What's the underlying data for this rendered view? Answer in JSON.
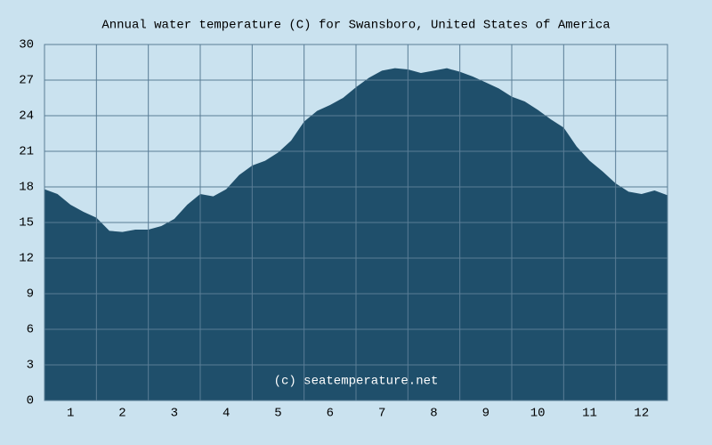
{
  "chart_data": {
    "type": "area",
    "title": "Annual water temperature (C) for Swansboro, United States of America",
    "annotation": "(c) seatemperature.net",
    "x": [
      0.5,
      0.75,
      1,
      1.25,
      1.5,
      1.75,
      2,
      2.25,
      2.5,
      2.75,
      3,
      3.25,
      3.5,
      3.75,
      4,
      4.25,
      4.5,
      4.75,
      5,
      5.25,
      5.5,
      5.75,
      6,
      6.25,
      6.5,
      6.75,
      7,
      7.25,
      7.5,
      7.75,
      8,
      8.25,
      8.5,
      8.75,
      9,
      9.25,
      9.5,
      9.75,
      10,
      10.25,
      10.5,
      10.75,
      11,
      11.25,
      11.5,
      11.75,
      12,
      12.25,
      12.5
    ],
    "values": [
      17.8,
      17.4,
      16.5,
      15.9,
      15.4,
      14.3,
      14.2,
      14.4,
      14.4,
      14.7,
      15.3,
      16.5,
      17.4,
      17.2,
      17.8,
      19.0,
      19.8,
      20.2,
      20.9,
      21.9,
      23.5,
      24.4,
      24.9,
      25.5,
      26.4,
      27.2,
      27.8,
      28.0,
      27.9,
      27.6,
      27.8,
      28.0,
      27.7,
      27.3,
      26.8,
      26.3,
      25.6,
      25.2,
      24.5,
      23.7,
      23.0,
      21.4,
      20.2,
      19.3,
      18.3,
      17.6,
      17.4,
      17.7,
      17.3
    ],
    "color": "#1f4f6b",
    "xlim": [
      0.5,
      12.5
    ],
    "xticks": [
      1,
      2,
      3,
      4,
      5,
      6,
      7,
      8,
      9,
      10,
      11,
      12
    ],
    "ylim": [
      0,
      30
    ],
    "yticks": [
      0,
      3,
      6,
      9,
      12,
      15,
      18,
      21,
      24,
      27,
      30
    ],
    "grid": true
  }
}
